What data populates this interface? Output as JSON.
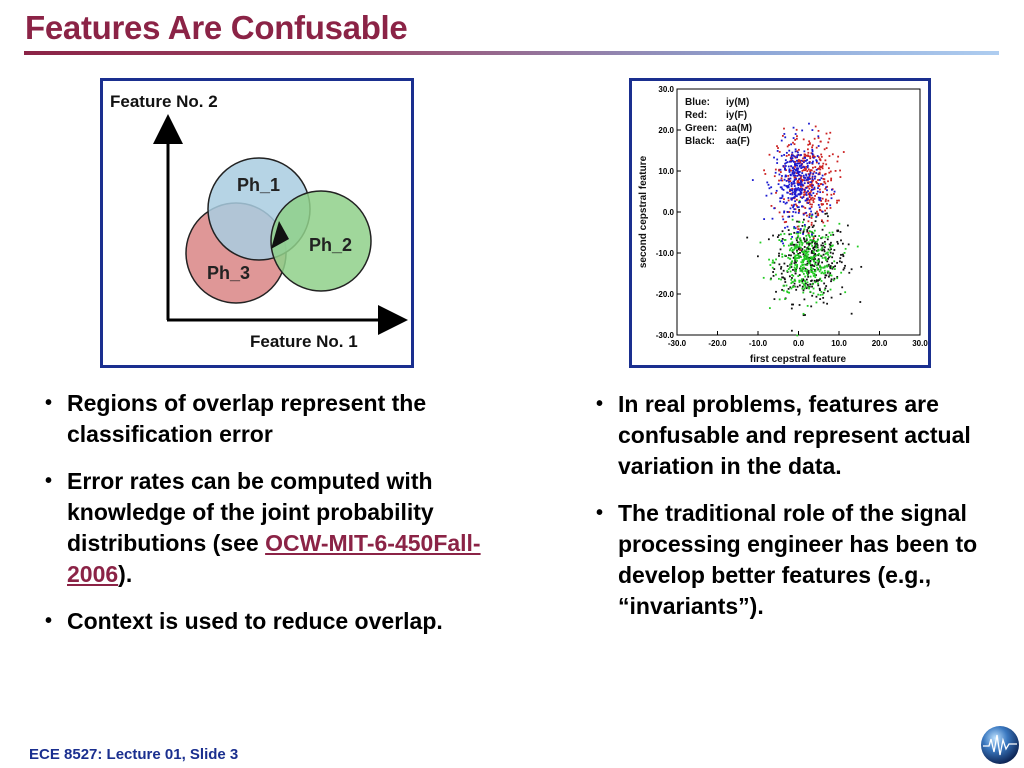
{
  "slide": {
    "title": "Features Are Confusable"
  },
  "venn": {
    "y_label": "Feature No. 2",
    "x_label": "Feature No. 1",
    "classes": [
      "Ph_1",
      "Ph_2",
      "Ph_3"
    ]
  },
  "scatter": {
    "legend": [
      {
        "label": "Blue:",
        "value": "iy(M)"
      },
      {
        "label": "Red:",
        "value": "iy(F)"
      },
      {
        "label": "Green:",
        "value": "aa(M)"
      },
      {
        "label": "Black:",
        "value": "aa(F)"
      }
    ],
    "colors": {
      "blue": "#1a1ad0",
      "red": "#cc2222",
      "green": "#22cc22",
      "black": "#111111"
    }
  },
  "chart_data": {
    "type": "scatter",
    "xlabel": "first cepstral feature",
    "ylabel": "second cepstral feature",
    "xlim": [
      -30.0,
      30.0
    ],
    "ylim": [
      -30.0,
      30.0
    ],
    "xticks": [
      "-30.0",
      "-20.0",
      "-10.0",
      "0.0",
      "10.0",
      "20.0",
      "30.0"
    ],
    "yticks": [
      "30.0",
      "20.0",
      "10.0",
      "0.0",
      "-10.0",
      "-20.0",
      "-30.0"
    ],
    "series": [
      {
        "name": "iy(M)",
        "color": "blue",
        "center": [
          0.0,
          7.0
        ],
        "spread": [
          3.0,
          5.0
        ]
      },
      {
        "name": "iy(F)",
        "color": "red",
        "center": [
          2.0,
          8.0
        ],
        "spread": [
          3.5,
          5.5
        ]
      },
      {
        "name": "aa(M)",
        "color": "green",
        "center": [
          2.0,
          -12.0
        ],
        "spread": [
          4.0,
          4.5
        ]
      },
      {
        "name": "aa(F)",
        "color": "black",
        "center": [
          3.0,
          -12.0
        ],
        "spread": [
          4.5,
          5.0
        ]
      }
    ]
  },
  "left_bullets": [
    {
      "text": "Regions of overlap represent the classification error"
    },
    {
      "before": "Error rates can be computed with knowledge of the joint probability distributions (see ",
      "link": "OCW-MIT-6-450Fall-2006",
      "after": ")."
    },
    {
      "text": "Context is used to reduce overlap."
    }
  ],
  "right_bullets": [
    {
      "text": "In real problems, features are confusable and represent actual variation in the data."
    },
    {
      "text": "The traditional role of the signal processing engineer has been to develop better features (e.g., “invariants”)."
    }
  ],
  "footer": {
    "text": "ECE 8527: Lecture 01, Slide 3"
  }
}
